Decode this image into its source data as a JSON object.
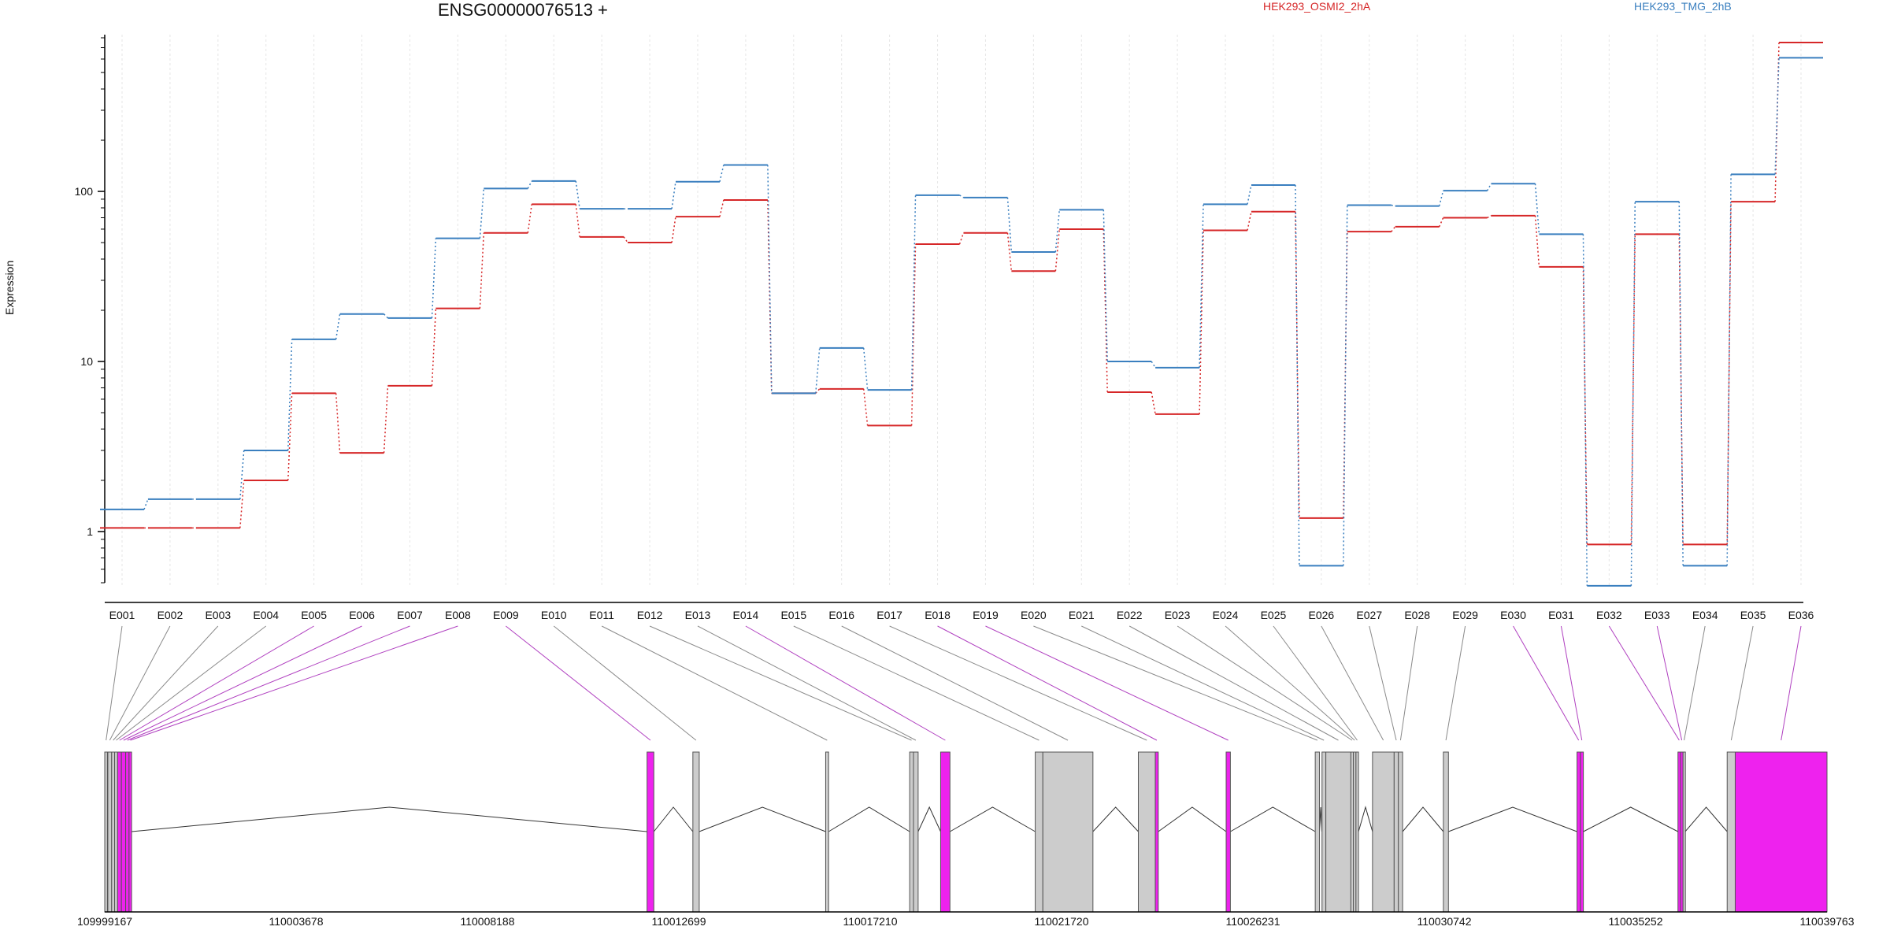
{
  "chart_data": {
    "type": "line",
    "title": "ENSG00000076513 +",
    "ylabel": "Expression",
    "yscale": "log",
    "ylim": [
      0.5,
      800
    ],
    "yticks": [
      1,
      10,
      100
    ],
    "ytick_labels": [
      "1",
      "10",
      "100"
    ],
    "categories": [
      "E001",
      "E002",
      "E003",
      "E004",
      "E005",
      "E006",
      "E007",
      "E008",
      "E009",
      "E010",
      "E011",
      "E012",
      "E013",
      "E014",
      "E015",
      "E016",
      "E017",
      "E018",
      "E019",
      "E020",
      "E021",
      "E022",
      "E023",
      "E024",
      "E025",
      "E026",
      "E027",
      "E028",
      "E029",
      "E030",
      "E031",
      "E032",
      "E033",
      "E034",
      "E035",
      "E036"
    ],
    "series": [
      {
        "name": "HEK293_OSMI2_2hA",
        "color": "#d62728",
        "values": [
          1.05,
          1.05,
          1.05,
          2.0,
          6.5,
          2.9,
          7.2,
          20.5,
          57,
          84,
          54,
          50,
          71,
          89,
          6.5,
          6.9,
          4.2,
          49,
          57,
          34,
          60,
          6.6,
          4.9,
          59,
          76,
          1.2,
          58,
          62,
          70,
          72,
          36,
          0.84,
          56,
          0.84,
          87,
          750
        ]
      },
      {
        "name": "HEK293_TMG_2hB",
        "color": "#3a7fbf",
        "values": [
          1.35,
          1.55,
          1.55,
          3.0,
          13.5,
          19,
          18,
          53,
          104,
          115,
          79,
          79,
          114,
          143,
          6.5,
          12,
          6.8,
          95,
          92,
          44,
          78,
          10,
          9.2,
          84,
          109,
          0.63,
          83,
          82,
          101,
          111,
          56,
          0.48,
          87,
          0.63,
          126,
          610
        ]
      }
    ],
    "genomic_axis": {
      "start": 109999167,
      "end": 110039763,
      "tick_labels": [
        "109999167",
        "110003678",
        "110008188",
        "110012699",
        "110017210",
        "110021720",
        "110026231",
        "110030742",
        "110035252",
        "110039763"
      ]
    },
    "highlight_color": "#ee22ee",
    "exon_color": "#cccccc",
    "exons": [
      {
        "id": "E001",
        "start": 109999167,
        "end": 109999230,
        "h": false
      },
      {
        "id": "E002",
        "start": 109999240,
        "end": 109999330,
        "h": false
      },
      {
        "id": "E003",
        "start": 109999330,
        "end": 109999400,
        "h": false
      },
      {
        "id": "E004",
        "start": 109999400,
        "end": 109999470,
        "h": false
      },
      {
        "id": "E005",
        "start": 109999470,
        "end": 109999560,
        "h": true
      },
      {
        "id": "E006",
        "start": 109999560,
        "end": 109999660,
        "h": true
      },
      {
        "id": "E007",
        "start": 109999660,
        "end": 109999740,
        "h": true
      },
      {
        "id": "E008",
        "start": 109999740,
        "end": 109999800,
        "h": true
      },
      {
        "id": "E009",
        "start": 110011950,
        "end": 110012110,
        "h": true
      },
      {
        "id": "E010",
        "start": 110013030,
        "end": 110013180,
        "h": false
      },
      {
        "id": "E011",
        "start": 110016160,
        "end": 110016230,
        "h": false
      },
      {
        "id": "E012",
        "start": 110018140,
        "end": 110018230,
        "h": false
      },
      {
        "id": "E013",
        "start": 110018230,
        "end": 110018340,
        "h": false
      },
      {
        "id": "E014",
        "start": 110018870,
        "end": 110019090,
        "h": true
      },
      {
        "id": "E015",
        "start": 110021100,
        "end": 110021280,
        "h": false
      },
      {
        "id": "E016",
        "start": 110021280,
        "end": 110022460,
        "h": false
      },
      {
        "id": "E017",
        "start": 110023530,
        "end": 110023930,
        "h": false
      },
      {
        "id": "E018",
        "start": 110023930,
        "end": 110024000,
        "h": true
      },
      {
        "id": "E019",
        "start": 110025600,
        "end": 110025700,
        "h": true
      },
      {
        "id": "E020",
        "start": 110027700,
        "end": 110027800,
        "h": false
      },
      {
        "id": "E021",
        "start": 110027860,
        "end": 110027950,
        "h": false
      },
      {
        "id": "E022",
        "start": 110027950,
        "end": 110028540,
        "h": false
      },
      {
        "id": "E023",
        "start": 110028540,
        "end": 110028600,
        "h": false
      },
      {
        "id": "E024",
        "start": 110028600,
        "end": 110028660,
        "h": false
      },
      {
        "id": "E025",
        "start": 110028660,
        "end": 110028720,
        "h": false
      },
      {
        "id": "E026",
        "start": 110029050,
        "end": 110029560,
        "h": false
      },
      {
        "id": "E027",
        "start": 110029560,
        "end": 110029660,
        "h": false
      },
      {
        "id": "E028",
        "start": 110029660,
        "end": 110029760,
        "h": false
      },
      {
        "id": "E029",
        "start": 110030720,
        "end": 110030840,
        "h": false
      },
      {
        "id": "E030",
        "start": 110033870,
        "end": 110033950,
        "h": true
      },
      {
        "id": "E031",
        "start": 110033950,
        "end": 110034020,
        "h": true
      },
      {
        "id": "E032",
        "start": 110036250,
        "end": 110036310,
        "h": true
      },
      {
        "id": "E033",
        "start": 110036310,
        "end": 110036370,
        "h": true
      },
      {
        "id": "E034",
        "start": 110036370,
        "end": 110036420,
        "h": false
      },
      {
        "id": "E035",
        "start": 110037410,
        "end": 110037600,
        "h": false
      },
      {
        "id": "E036",
        "start": 110037600,
        "end": 110039763,
        "h": true
      }
    ]
  }
}
